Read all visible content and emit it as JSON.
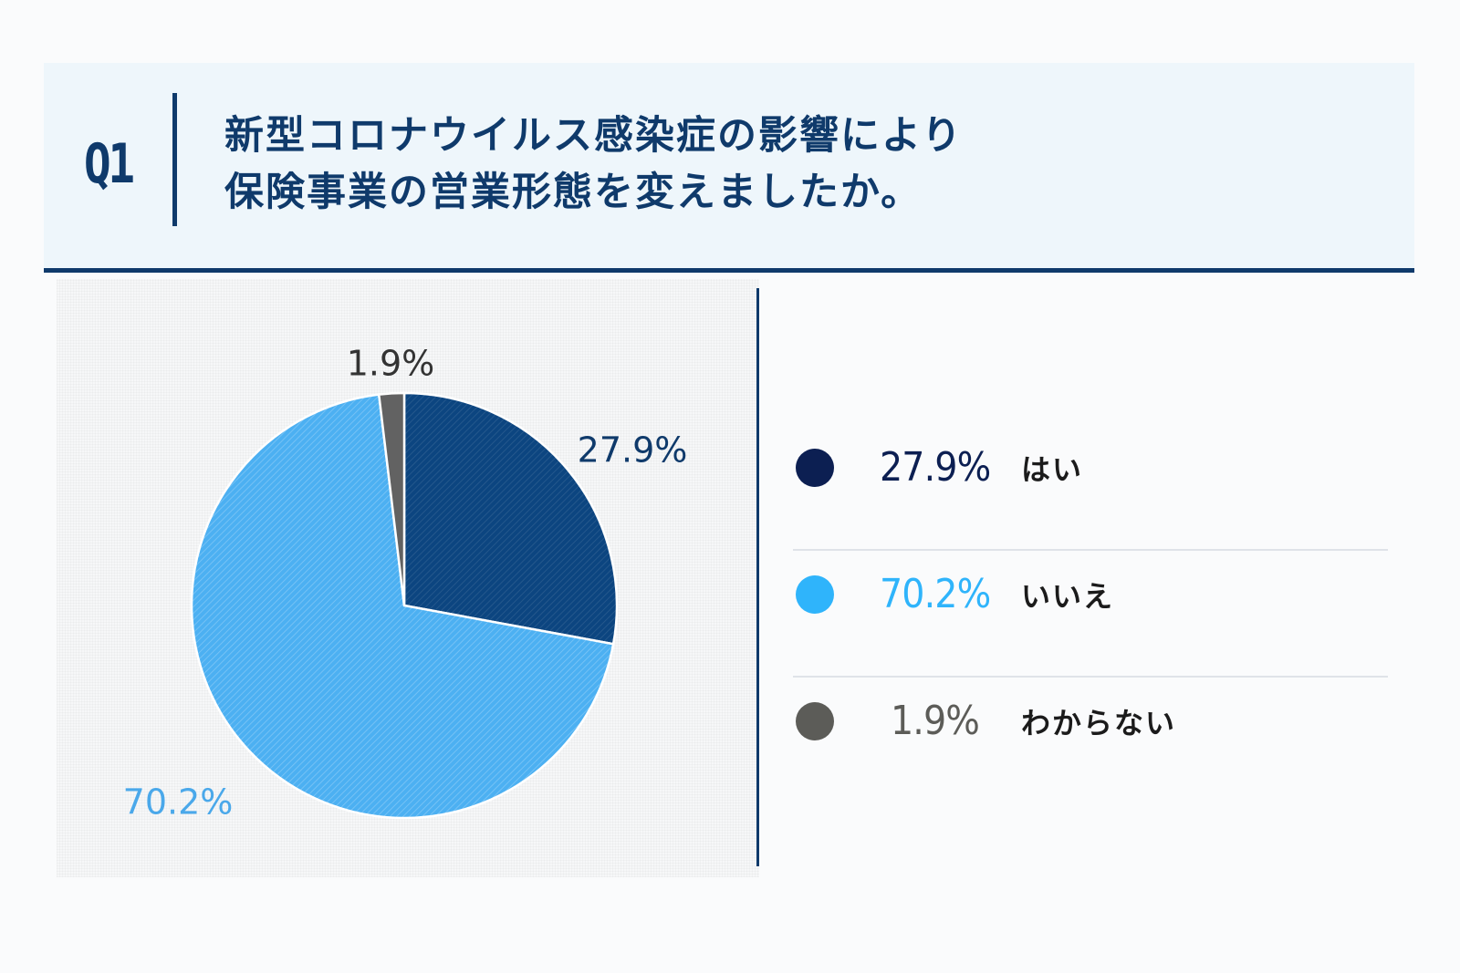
{
  "header": {
    "q_label": "Q1",
    "question_line1": "新型コロナウイルス感染症の影響により",
    "question_line2": "保険事業の営業形態を変えましたか。"
  },
  "chart_data": {
    "type": "pie",
    "title": "",
    "categories": [
      "はい",
      "いいえ",
      "わからない"
    ],
    "values": [
      27.9,
      70.2,
      1.9
    ],
    "value_labels": [
      "27.9%",
      "70.2%",
      "1.9%"
    ],
    "colors": [
      "#0c4580",
      "#4cb0f2",
      "#626262"
    ],
    "label_colors": [
      "#0f3a6b",
      "#4aa8ea",
      "#333333"
    ],
    "start_angle_deg": 0,
    "direction": "clockwise",
    "legend_position": "right"
  },
  "legend": {
    "items": [
      {
        "pct": "27.9%",
        "label": "はい",
        "dot_color": "#0c1f52",
        "pct_color": "#0c1f52"
      },
      {
        "pct": "70.2%",
        "label": "いいえ",
        "dot_color": "#2fb4fb",
        "pct_color": "#2fb4fb"
      },
      {
        "pct": "1.9%",
        "label": "わからない",
        "dot_color": "#5c5c58",
        "pct_color": "#5c5c58"
      }
    ]
  }
}
